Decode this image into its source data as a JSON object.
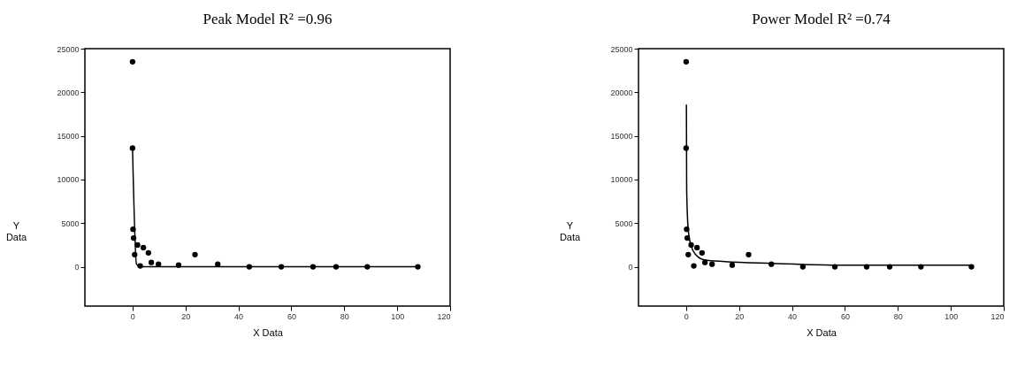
{
  "chart_data": [
    {
      "type": "scatter",
      "title": "Peak Model  R² =0.96",
      "xlabel": "X Data",
      "ylabel": "Y Data",
      "xlim": [
        -18,
        120
      ],
      "ylim": [
        -4500,
        25000
      ],
      "xticks": [
        0,
        20,
        40,
        60,
        80,
        100,
        120
      ],
      "yticks": [
        0,
        5000,
        10000,
        15000,
        20000,
        25000
      ],
      "grid": false,
      "series": [
        {
          "color": "#000000",
          "marker": "circle",
          "x": [
            0,
            0,
            0.2,
            0.4,
            1.9,
            0.8,
            4.1,
            2.9,
            6,
            7.1,
            9.8,
            17.4,
            23.6,
            32.2,
            44.1,
            56.2,
            68.2,
            76.9,
            88.7,
            107.8
          ],
          "values": [
            23500,
            13600,
            4300,
            3300,
            2500,
            1400,
            2200,
            100,
            1600,
            500,
            300,
            200,
            1400,
            300,
            0,
            0,
            0,
            0,
            0,
            0
          ]
        },
        {
          "type": "line",
          "color": "#000000",
          "x": [
            0,
            1.5,
            3,
            108
          ],
          "values": [
            13600,
            300,
            0,
            0
          ]
        }
      ]
    },
    {
      "type": "scatter",
      "title": "Power Model  R² =0.74",
      "xlabel": "X Data",
      "ylabel": "Y Data",
      "xlim": [
        -18,
        120
      ],
      "ylim": [
        -4500,
        25000
      ],
      "xticks": [
        0,
        20,
        40,
        60,
        80,
        100,
        120
      ],
      "yticks": [
        0,
        5000,
        10000,
        15000,
        20000,
        25000
      ],
      "grid": false,
      "series": [
        {
          "color": "#000000",
          "marker": "circle",
          "x": [
            0,
            0,
            0.2,
            0.4,
            1.9,
            0.8,
            4.1,
            2.9,
            6,
            7.1,
            9.8,
            17.4,
            23.6,
            32.2,
            44.1,
            56.2,
            68.2,
            76.9,
            88.7,
            107.8
          ],
          "values": [
            23500,
            13600,
            4300,
            3300,
            2500,
            1400,
            2200,
            100,
            1600,
            500,
            300,
            200,
            1400,
            300,
            0,
            0,
            0,
            0,
            0,
            0
          ]
        },
        {
          "type": "line",
          "color": "#000000",
          "x": [
            0.1,
            0.2,
            0.8,
            1.9,
            3.6,
            6.9,
            14.7,
            32.4,
            59,
            108
          ],
          "values": [
            18600,
            8800,
            4200,
            2400,
            1400,
            800,
            600,
            400,
            200,
            200
          ]
        }
      ]
    }
  ]
}
